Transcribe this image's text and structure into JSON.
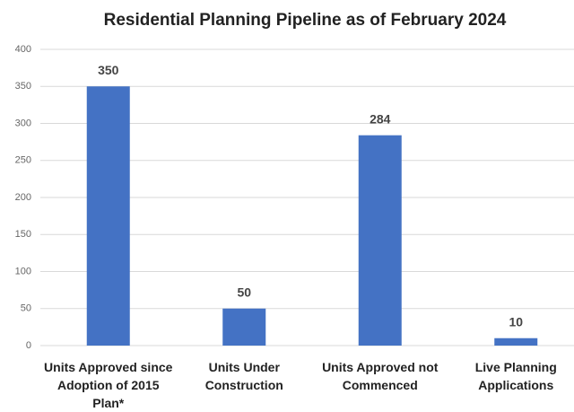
{
  "chart_data": {
    "type": "bar",
    "title": "Residential Planning Pipeline as of February 2024",
    "categories": [
      "Units Approved since Adoption of 2015 Plan*",
      "Units Under Construction",
      "Units Approved not Commenced",
      "Live Planning Applications"
    ],
    "values": [
      350,
      50,
      284,
      10
    ],
    "color": "#4472c4",
    "ylim": [
      0,
      400
    ],
    "yticks": [
      0,
      50,
      100,
      150,
      200,
      250,
      300,
      350,
      400
    ],
    "grid": true
  }
}
